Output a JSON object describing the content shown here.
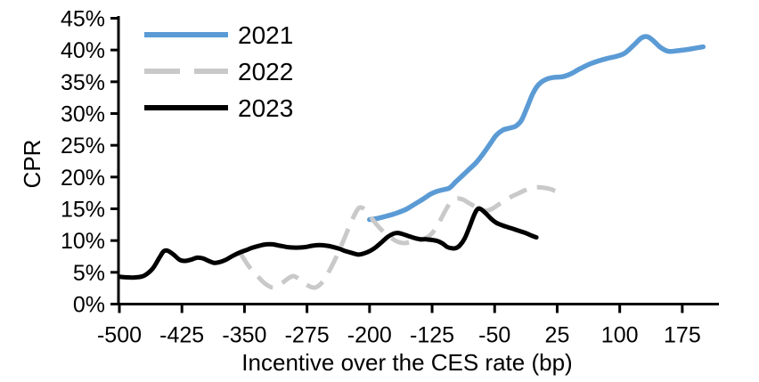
{
  "chart_data": {
    "type": "line",
    "xlabel": "Incentive over the CES rate (bp)",
    "ylabel": "CPR",
    "grid": "off",
    "legend_position": "top-left-inside",
    "background_color": "#FFFFFF",
    "axis_color": "#000000",
    "x_axis": {
      "range": [
        -500,
        220
      ],
      "ticks": [
        -500,
        -425,
        -350,
        -275,
        -200,
        -125,
        -50,
        25,
        100,
        175
      ],
      "tick_labels": [
        "-500",
        "-425",
        "-350",
        "-275",
        "-200",
        "-125",
        "-50",
        "25",
        "100",
        "175"
      ]
    },
    "y_axis": {
      "range": [
        0,
        45
      ],
      "ticks": [
        0,
        5,
        10,
        15,
        20,
        25,
        30,
        35,
        40,
        45
      ],
      "tick_labels": [
        "0%",
        "5%",
        "10%",
        "15%",
        "20%",
        "25%",
        "30%",
        "35%",
        "40%",
        "45%"
      ]
    },
    "series": [
      {
        "name": "2021",
        "color": "#5B9BD5",
        "style": "solid",
        "line_width": 5.5,
        "points": [
          [
            -200,
            13.3
          ],
          [
            -190,
            13.5
          ],
          [
            -178,
            13.9
          ],
          [
            -166,
            14.4
          ],
          [
            -155,
            15.0
          ],
          [
            -145,
            15.8
          ],
          [
            -135,
            16.6
          ],
          [
            -127,
            17.3
          ],
          [
            -120,
            17.7
          ],
          [
            -112,
            18.0
          ],
          [
            -104,
            18.3
          ],
          [
            -97,
            19.2
          ],
          [
            -88,
            20.3
          ],
          [
            -80,
            21.3
          ],
          [
            -72,
            22.3
          ],
          [
            -63,
            23.8
          ],
          [
            -55,
            25.3
          ],
          [
            -48,
            26.6
          ],
          [
            -40,
            27.4
          ],
          [
            -32,
            27.7
          ],
          [
            -25,
            28.0
          ],
          [
            -18,
            28.9
          ],
          [
            -11,
            31.0
          ],
          [
            -4,
            33.2
          ],
          [
            3,
            34.6
          ],
          [
            12,
            35.4
          ],
          [
            22,
            35.7
          ],
          [
            32,
            35.8
          ],
          [
            42,
            36.3
          ],
          [
            53,
            37.1
          ],
          [
            64,
            37.8
          ],
          [
            75,
            38.3
          ],
          [
            86,
            38.7
          ],
          [
            96,
            39.0
          ],
          [
            106,
            39.5
          ],
          [
            117,
            40.8
          ],
          [
            126,
            41.9
          ],
          [
            133,
            42.1
          ],
          [
            140,
            41.5
          ],
          [
            149,
            40.4
          ],
          [
            158,
            39.8
          ],
          [
            170,
            39.9
          ],
          [
            182,
            40.1
          ],
          [
            200,
            40.5
          ]
        ]
      },
      {
        "name": "2022",
        "color": "#C9C9C9",
        "style": "dashed",
        "line_width": 5,
        "points": [
          [
            -355,
            8.0
          ],
          [
            -345,
            6.0
          ],
          [
            -335,
            4.5
          ],
          [
            -325,
            3.2
          ],
          [
            -315,
            2.6
          ],
          [
            -305,
            3.3
          ],
          [
            -297,
            4.1
          ],
          [
            -291,
            4.4
          ],
          [
            -283,
            3.8
          ],
          [
            -275,
            3.0
          ],
          [
            -266,
            2.6
          ],
          [
            -257,
            3.4
          ],
          [
            -248,
            5.3
          ],
          [
            -240,
            7.4
          ],
          [
            -232,
            9.8
          ],
          [
            -224,
            12.3
          ],
          [
            -217,
            14.3
          ],
          [
            -212,
            15.2
          ],
          [
            -206,
            14.9
          ],
          [
            -198,
            13.6
          ],
          [
            -190,
            12.3
          ],
          [
            -182,
            11.2
          ],
          [
            -174,
            10.4
          ],
          [
            -166,
            9.8
          ],
          [
            -158,
            9.6
          ],
          [
            -150,
            9.8
          ],
          [
            -142,
            10.0
          ],
          [
            -134,
            10.3
          ],
          [
            -126,
            11.0
          ],
          [
            -118,
            12.5
          ],
          [
            -110,
            14.5
          ],
          [
            -103,
            16.0
          ],
          [
            -96,
            16.6
          ],
          [
            -89,
            16.5
          ],
          [
            -82,
            16.0
          ],
          [
            -74,
            15.4
          ],
          [
            -66,
            14.9
          ],
          [
            -60,
            14.7
          ],
          [
            -53,
            15.0
          ],
          [
            -46,
            15.6
          ],
          [
            -38,
            16.3
          ],
          [
            -30,
            16.9
          ],
          [
            -22,
            17.4
          ],
          [
            -14,
            17.9
          ],
          [
            -6,
            18.3
          ],
          [
            2,
            18.4
          ],
          [
            10,
            18.3
          ],
          [
            17,
            18.1
          ],
          [
            23,
            17.8
          ]
        ]
      },
      {
        "name": "2023",
        "color": "#000000",
        "style": "solid",
        "line_width": 5,
        "points": [
          [
            -500,
            4.3
          ],
          [
            -490,
            4.2
          ],
          [
            -480,
            4.2
          ],
          [
            -470,
            4.5
          ],
          [
            -460,
            5.6
          ],
          [
            -452,
            7.3
          ],
          [
            -447,
            8.3
          ],
          [
            -442,
            8.4
          ],
          [
            -435,
            7.8
          ],
          [
            -428,
            7.0
          ],
          [
            -422,
            6.8
          ],
          [
            -414,
            7.0
          ],
          [
            -407,
            7.3
          ],
          [
            -400,
            7.2
          ],
          [
            -393,
            6.8
          ],
          [
            -387,
            6.5
          ],
          [
            -380,
            6.6
          ],
          [
            -372,
            7.0
          ],
          [
            -364,
            7.6
          ],
          [
            -356,
            8.1
          ],
          [
            -348,
            8.5
          ],
          [
            -340,
            8.9
          ],
          [
            -332,
            9.2
          ],
          [
            -324,
            9.4
          ],
          [
            -316,
            9.4
          ],
          [
            -308,
            9.2
          ],
          [
            -300,
            9.0
          ],
          [
            -292,
            8.9
          ],
          [
            -284,
            8.9
          ],
          [
            -276,
            9.0
          ],
          [
            -268,
            9.2
          ],
          [
            -260,
            9.3
          ],
          [
            -252,
            9.2
          ],
          [
            -244,
            9.0
          ],
          [
            -236,
            8.7
          ],
          [
            -228,
            8.3
          ],
          [
            -220,
            8.0
          ],
          [
            -213,
            7.8
          ],
          [
            -206,
            8.0
          ],
          [
            -199,
            8.4
          ],
          [
            -192,
            9.0
          ],
          [
            -185,
            9.8
          ],
          [
            -178,
            10.6
          ],
          [
            -171,
            11.1
          ],
          [
            -166,
            11.2
          ],
          [
            -160,
            11.0
          ],
          [
            -153,
            10.7
          ],
          [
            -146,
            10.4
          ],
          [
            -139,
            10.2
          ],
          [
            -132,
            10.2
          ],
          [
            -125,
            10.1
          ],
          [
            -118,
            9.9
          ],
          [
            -112,
            9.5
          ],
          [
            -107,
            9.0
          ],
          [
            -102,
            8.8
          ],
          [
            -97,
            8.8
          ],
          [
            -92,
            9.2
          ],
          [
            -86,
            10.3
          ],
          [
            -80,
            12.2
          ],
          [
            -74,
            14.2
          ],
          [
            -70,
            15.0
          ],
          [
            -66,
            14.9
          ],
          [
            -60,
            14.2
          ],
          [
            -54,
            13.4
          ],
          [
            -48,
            12.8
          ],
          [
            -41,
            12.4
          ],
          [
            -34,
            12.1
          ],
          [
            -27,
            11.8
          ],
          [
            -20,
            11.5
          ],
          [
            -13,
            11.2
          ],
          [
            -6,
            10.8
          ],
          [
            0,
            10.5
          ]
        ]
      }
    ],
    "legend": {
      "items": [
        "2021",
        "2022",
        "2023"
      ]
    }
  }
}
